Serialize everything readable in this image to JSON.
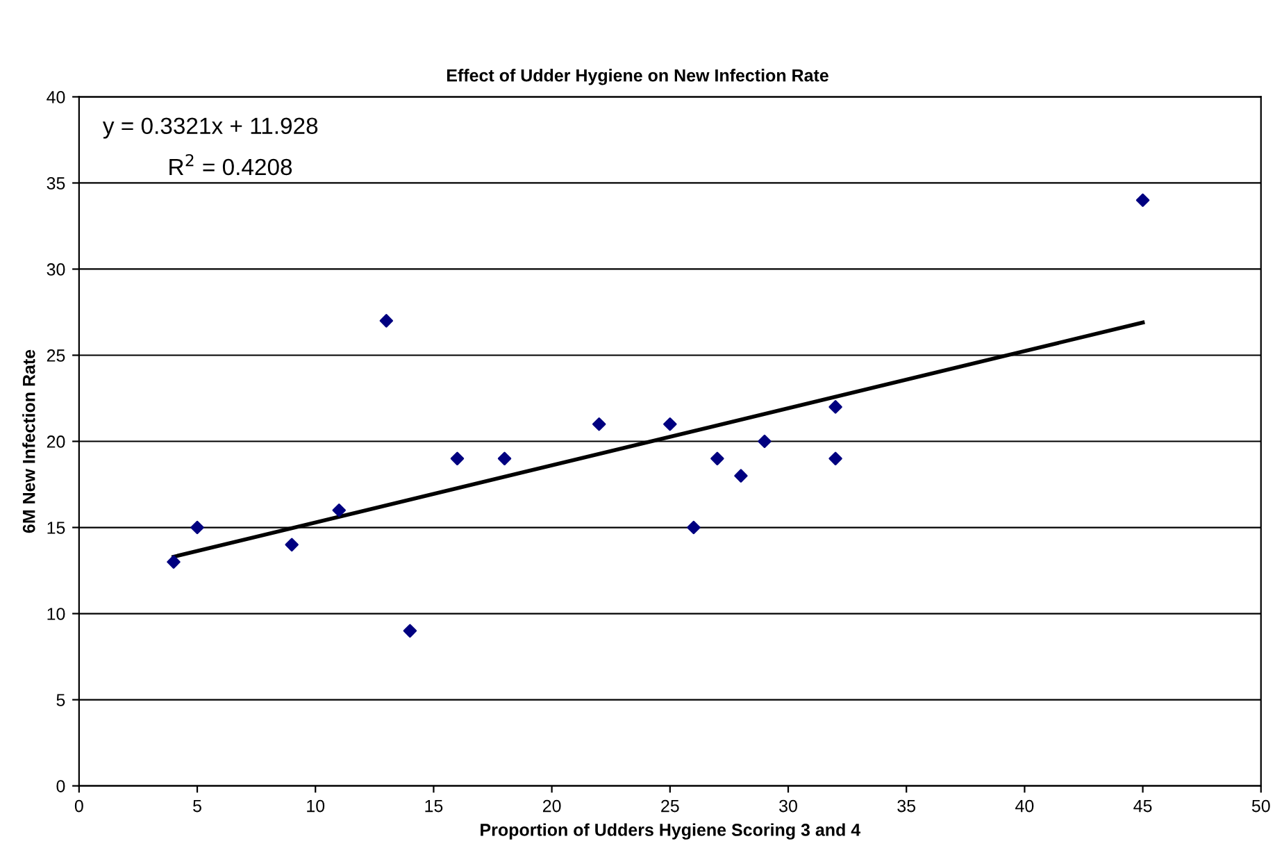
{
  "chart_data": {
    "type": "scatter",
    "title": "Effect of Udder Hygiene on New Infection Rate",
    "xlabel": "Proportion of Udders Hygiene Scoring 3 and 4",
    "ylabel": "6M New Infection Rate",
    "annotations": [
      "y = 0.3321x + 11.928",
      "R$^{2}$ = 0.4208"
    ],
    "series": [
      {
        "color": "#000080",
        "marker": "diamond",
        "x": [
          4,
          5,
          9,
          11,
          13,
          14,
          16,
          18,
          22,
          25,
          26,
          27,
          28,
          29,
          32,
          32,
          45
        ],
        "values": [
          13,
          15,
          14,
          16,
          27,
          9,
          19,
          19,
          21,
          21,
          15,
          19,
          18,
          20,
          22,
          19,
          34
        ]
      },
      {
        "type": "line",
        "color": "#000000",
        "marker": "none",
        "x": [
          4,
          45
        ],
        "values": [
          13.3,
          26.9
        ]
      }
    ],
    "xlim": [
      0,
      50
    ],
    "xticks": [
      0,
      5,
      10,
      15,
      20,
      25,
      30,
      35,
      40,
      45,
      50
    ],
    "ylim": [
      0,
      40
    ],
    "yticks": [
      0,
      5,
      10,
      15,
      20,
      25,
      30,
      35,
      40
    ],
    "grid": "y",
    "legend": false
  }
}
